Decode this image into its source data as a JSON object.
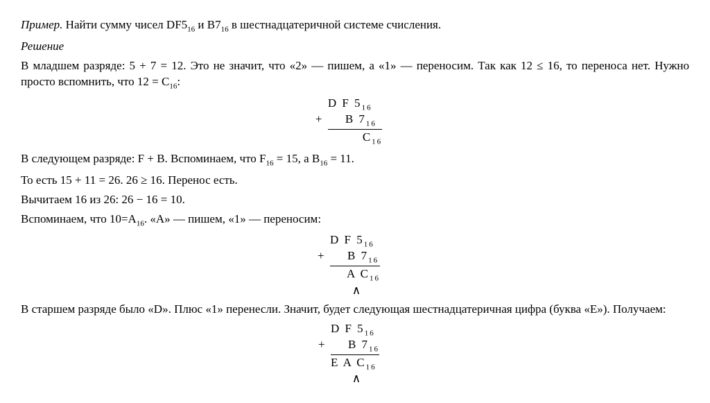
{
  "example_label": "Пример.",
  "example_text": " Найти сумму чисел DF5",
  "sub16": "16",
  "example_text2": " и B7",
  "example_text3": " в шестнадцатеричной системе счисления.",
  "solution_label": "Решение",
  "p1a": "В младшем разряде: 5 + 7 = 12. Это не значит, что «2» — пишем, а «1» — переносим. Так как 12 ≤ 16, то переноса нет. Нужно просто вспомнить, что 12 = C",
  "p1b": ":",
  "calc1": {
    "r1": "D F 5",
    "r2": "    B 7",
    "r3": "        C"
  },
  "p2a": "В следующем разряде: F + B. Вспоминаем, что F",
  "p2b": " = 15, а B",
  "p2c": " = 11.",
  "p3": "То есть 15 + 11 = 26. 26 ≥ 16. Перенос есть.",
  "p4": "Вычитаем 16 из 26: 26 − 16 = 10.",
  "p5a": "Вспоминаем, что 10=A",
  "p5b": ". «A» — пишем, «1» — переносим:",
  "calc2": {
    "r1": "D F 5",
    "r2": "    B 7",
    "r3": "    A C",
    "caret": "∧"
  },
  "p6": "В старшем разряде было «D». Плюс «1» перенесли. Значит, будет следующая шестнадцатеричная цифра (буква «E»). Получаем:",
  "calc3": {
    "r1": "D F 5",
    "r2": "    B 7",
    "r3": "E A C",
    "caret": "∧"
  }
}
